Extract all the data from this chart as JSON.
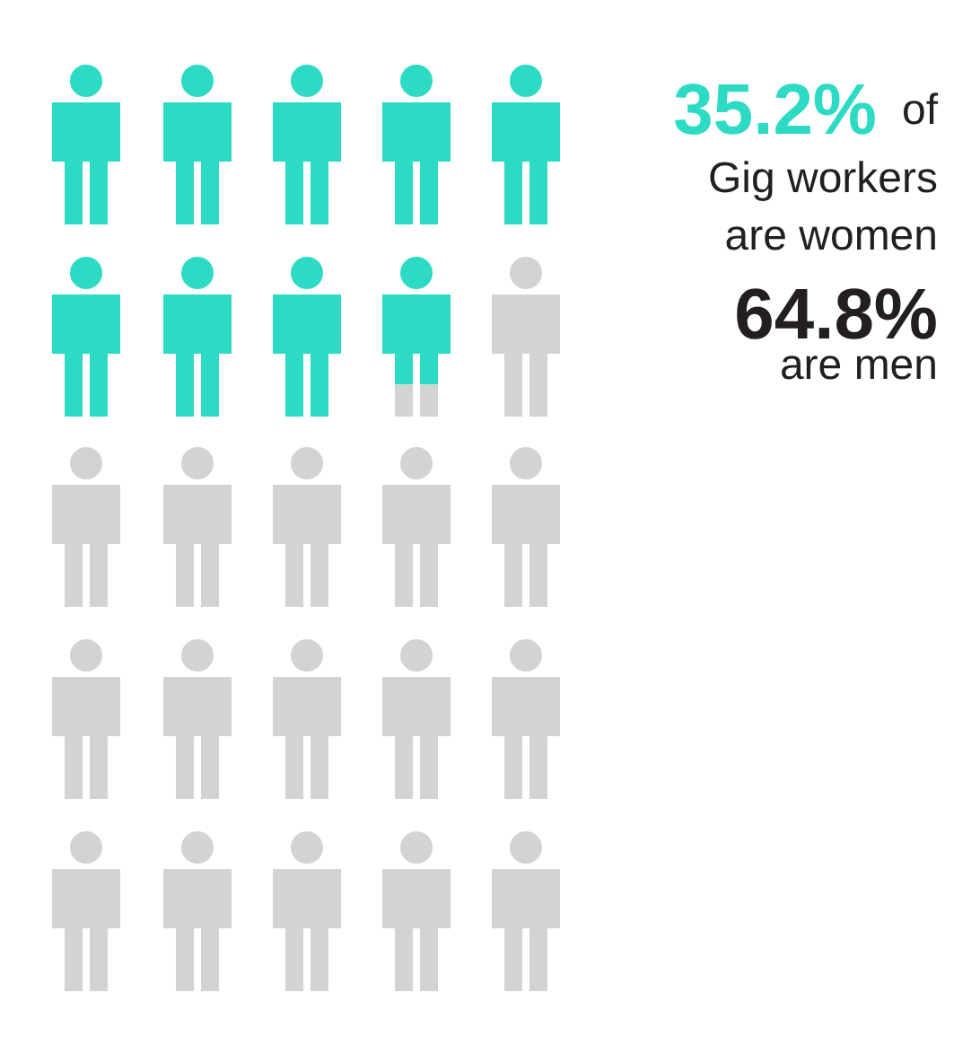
{
  "chart_data": {
    "type": "other",
    "categories": [
      null,
      null
    ],
    "values": [
      35.2,
      64.8
    ],
    "colors": [
      "#2ddbc4",
      "#d3d3d3"
    ],
    "value_labels": [
      "35.2%",
      "64.8%"
    ],
    "annotations": [
      "of",
      "Gig workers",
      "are women",
      "are men"
    ]
  }
}
